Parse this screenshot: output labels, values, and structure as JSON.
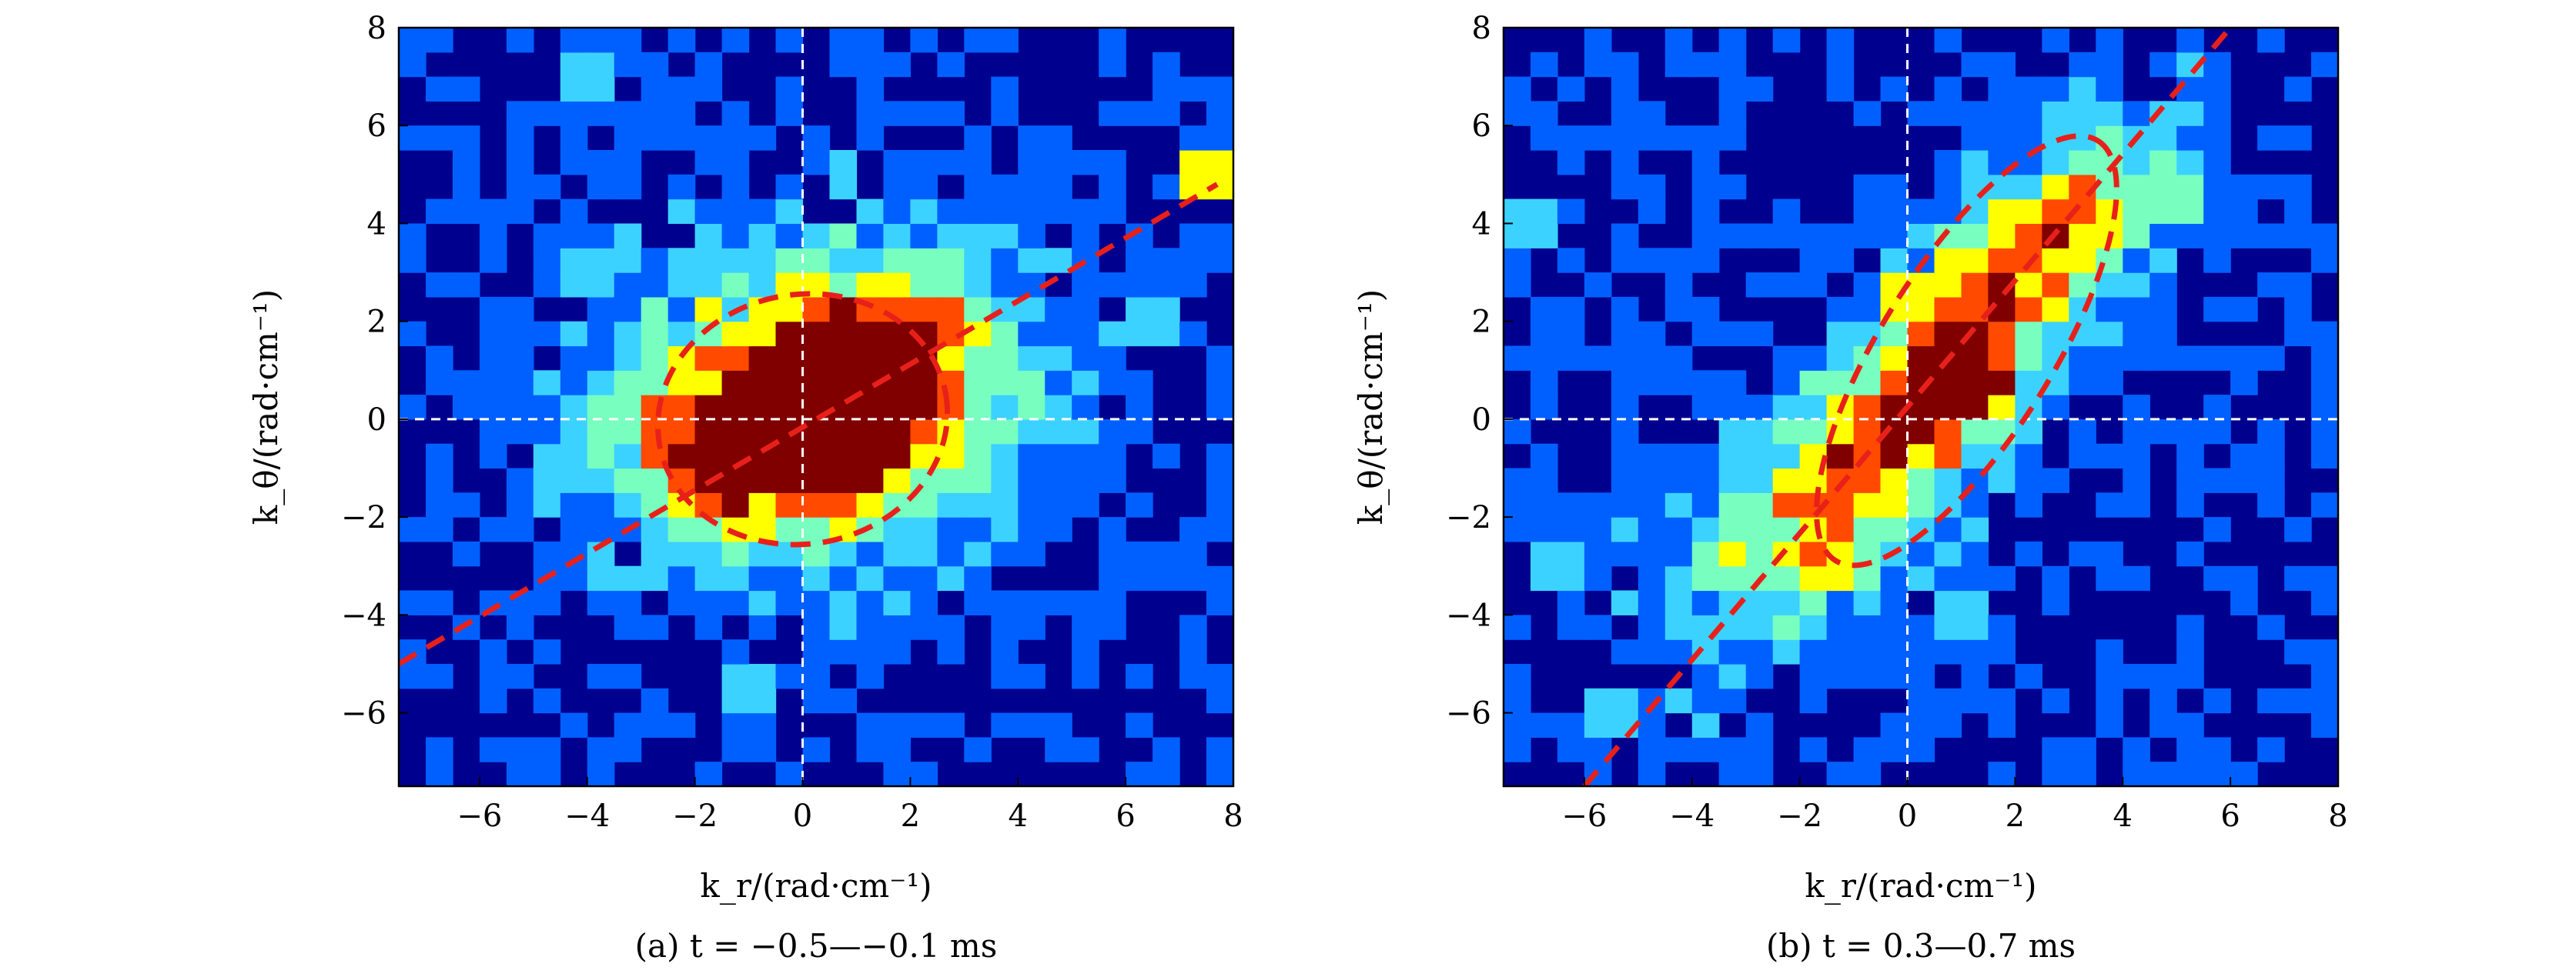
{
  "chart_data": [
    {
      "type": "heatmap",
      "panel": "a",
      "caption": "(a) t = −0.5—−0.1 ms",
      "xlabel": "k_r/(rad·cm⁻¹)",
      "ylabel": "k_θ/(rad·cm⁻¹)",
      "xlim": [
        -7.5,
        8
      ],
      "ylim": [
        -7.5,
        8
      ],
      "xticks": [
        -6,
        -4,
        -2,
        0,
        2,
        4,
        6,
        8
      ],
      "yticks": [
        -6,
        -4,
        -2,
        0,
        2,
        4,
        6,
        8
      ],
      "xtick_labels": [
        "−6",
        "−4",
        "−2",
        "0",
        "2",
        "4",
        "6",
        "8"
      ],
      "ytick_labels": [
        "−6",
        "−4",
        "−2",
        "0",
        "2",
        "4",
        "6",
        "8"
      ],
      "colormap": "jet",
      "background_color": "#00008f",
      "reference_lines": {
        "x0": 0,
        "y0": 0,
        "color": "#ffffff",
        "style": "dashed"
      },
      "intensity_blobs": [
        {
          "x": 0.3,
          "y": 0.3,
          "sx": 2.4,
          "sy": 1.9,
          "amp": 1.0,
          "rot": 15
        },
        {
          "x": -1.0,
          "y": -0.8,
          "sx": 1.3,
          "sy": 1.0,
          "amp": 0.35,
          "rot": 0
        },
        {
          "x": 1.8,
          "y": 1.5,
          "sx": 1.0,
          "sy": 0.8,
          "amp": 0.3,
          "rot": 0
        }
      ],
      "noise_amplitude": 0.28,
      "spots": [
        {
          "x": 7.5,
          "y": 5.0,
          "level": 4
        },
        {
          "x": -4.0,
          "y": 3.0,
          "level": 2
        },
        {
          "x": 0.8,
          "y": 5.0,
          "level": 2
        },
        {
          "x": -4.0,
          "y": 7.0,
          "level": 2
        },
        {
          "x": -1.0,
          "y": -5.5,
          "level": 2
        },
        {
          "x": 3.0,
          "y": 3.5,
          "level": 2
        },
        {
          "x": -4.5,
          "y": -1.0,
          "level": 2
        },
        {
          "x": 6.5,
          "y": 2.0,
          "level": 2
        }
      ],
      "fit_ellipse": {
        "cx": 0.0,
        "cy": 0.0,
        "rx": 2.7,
        "ry": 2.55,
        "rot": 10,
        "color": "#e8201a"
      },
      "fit_line": {
        "x": [
          -7.5,
          7.7
        ],
        "y": [
          -5.0,
          4.8
        ],
        "color": "#e8201a"
      }
    },
    {
      "type": "heatmap",
      "panel": "b",
      "caption": "(b) t = 0.3—0.7 ms",
      "xlabel": "k_r/(rad·cm⁻¹)",
      "ylabel": "k_θ/(rad·cm⁻¹)",
      "xlim": [
        -7.5,
        8
      ],
      "ylim": [
        -7.5,
        8
      ],
      "xticks": [
        -6,
        -4,
        -2,
        0,
        2,
        4,
        6,
        8
      ],
      "yticks": [
        -6,
        -4,
        -2,
        0,
        2,
        4,
        6,
        8
      ],
      "xtick_labels": [
        "−6",
        "−4",
        "−2",
        "0",
        "2",
        "4",
        "6",
        "8"
      ],
      "ytick_labels": [
        "−6",
        "−4",
        "−2",
        "0",
        "2",
        "4",
        "6",
        "8"
      ],
      "colormap": "jet",
      "background_color": "#00008f",
      "reference_lines": {
        "x0": 0,
        "y0": 0,
        "color": "#ffffff",
        "style": "dashed"
      },
      "intensity_blobs": [
        {
          "x": 0.8,
          "y": 1.0,
          "sx": 3.6,
          "sy": 1.1,
          "amp": 0.75,
          "rot": 55
        },
        {
          "x": 0.9,
          "y": 0.9,
          "sx": 0.6,
          "sy": 0.6,
          "amp": 0.45,
          "rot": 0
        },
        {
          "x": -2.5,
          "y": -2.0,
          "sx": 1.8,
          "sy": 1.2,
          "amp": 0.3,
          "rot": 45
        },
        {
          "x": 3.0,
          "y": 4.0,
          "sx": 1.5,
          "sy": 0.8,
          "amp": 0.3,
          "rot": 20
        }
      ],
      "noise_amplitude": 0.28,
      "spots": [
        {
          "x": 1.0,
          "y": 1.0,
          "level": 6
        },
        {
          "x": 0.5,
          "y": 0.5,
          "level": 5
        },
        {
          "x": 3.5,
          "y": 4.0,
          "level": 4
        },
        {
          "x": 0.0,
          "y": 2.5,
          "level": 4
        },
        {
          "x": 1.2,
          "y": 3.3,
          "level": 3
        },
        {
          "x": -7.0,
          "y": 4.0,
          "level": 2
        },
        {
          "x": -6.5,
          "y": -3.0,
          "level": 2
        },
        {
          "x": 1.0,
          "y": -4.0,
          "level": 2
        },
        {
          "x": -5.5,
          "y": -6.0,
          "level": 2
        },
        {
          "x": 5.0,
          "y": 4.5,
          "level": 3
        }
      ],
      "fit_ellipse": {
        "cx": 1.1,
        "cy": 1.4,
        "rx": 4.6,
        "ry": 1.75,
        "rot": 58,
        "color": "#e8201a"
      },
      "fit_line": {
        "x": [
          -6.0,
          6.0
        ],
        "y": [
          -7.5,
          8.0
        ],
        "color": "#e8201a"
      }
    }
  ]
}
